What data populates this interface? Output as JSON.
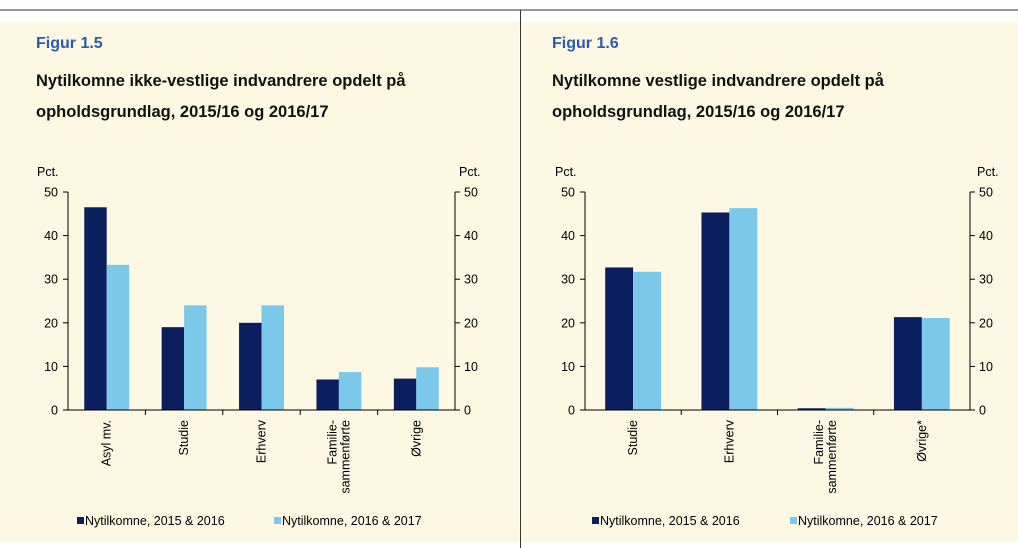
{
  "chart_data": [
    {
      "type": "bar",
      "figure_label": "Figur 1.5",
      "title": "Nytilkomne ikke-vestlige indvandrere opdelt på opholdsgrundlag, 2015/16 og 2016/17",
      "y_label": "Pct.",
      "y2_label": "Pct.",
      "categories": [
        "Asyl mv.",
        "Studie",
        "Erhverv",
        "Familie-\nsammenførte",
        "Øvrige"
      ],
      "series": [
        {
          "name": "Nytilkomne, 2015 & 2016",
          "color": "#0b1f5e",
          "values": [
            46.5,
            19,
            20,
            7,
            7.2
          ]
        },
        {
          "name": "Nytilkomne, 2016 & 2017",
          "color": "#7cc8ea",
          "values": [
            33.3,
            24,
            24,
            8.7,
            9.8
          ]
        }
      ],
      "ylim": [
        0,
        50
      ],
      "yticks": [
        0,
        10,
        20,
        30,
        40,
        50
      ],
      "y2lim": [
        0,
        50
      ],
      "y2ticks": [
        0,
        10,
        20,
        30,
        40,
        50
      ],
      "legend": "bottom"
    },
    {
      "type": "bar",
      "figure_label": "Figur 1.6",
      "title": "Nytilkomne vestlige indvandrere opdelt på opholdsgrundlag, 2015/16 og 2016/17",
      "y_label": "Pct.",
      "y2_label": "Pct.",
      "categories": [
        "Studie",
        "Erhverv",
        "Familie-\nsammenførte",
        "Øvrige*"
      ],
      "series": [
        {
          "name": "Nytilkomne, 2015 & 2016",
          "color": "#0b1f5e",
          "values": [
            32.7,
            45.3,
            0.4,
            21.3
          ]
        },
        {
          "name": "Nytilkomne, 2016 & 2017",
          "color": "#7cc8ea",
          "values": [
            31.7,
            46.3,
            0.5,
            21.1
          ]
        }
      ],
      "ylim": [
        0,
        50
      ],
      "yticks": [
        0,
        10,
        20,
        30,
        40,
        50
      ],
      "y2lim": [
        0,
        50
      ],
      "y2ticks": [
        0,
        10,
        20,
        30,
        40,
        50
      ],
      "legend": "bottom"
    }
  ]
}
